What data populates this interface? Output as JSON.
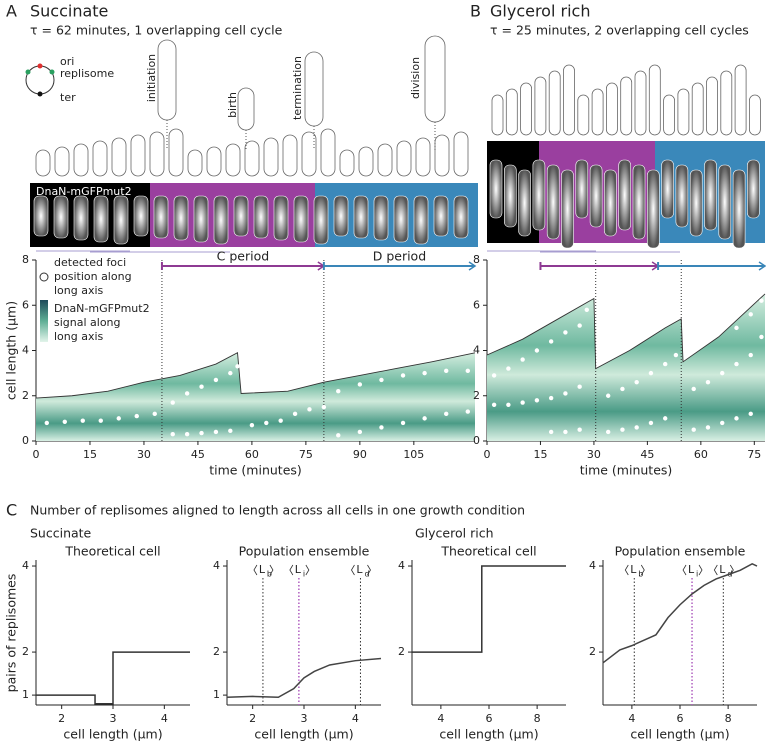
{
  "panel_a": {
    "label": "A",
    "title": "Succinate",
    "subtitle": "τ = 62 minutes, 1 overlapping cell cycle",
    "legend": [
      "ori",
      "replisome",
      "ter"
    ],
    "stages": [
      "initiation",
      "birth",
      "termination",
      "division"
    ],
    "image_label": "DnaN-mGFPmut2",
    "kymo_legend": {
      "foci": [
        "detected foci",
        "position along",
        "long axis"
      ],
      "signal": [
        "DnaN-mGFPmut2",
        "signal along",
        "long axis"
      ]
    }
  },
  "panel_b": {
    "label": "B",
    "title": "Glycerol rich",
    "subtitle": "τ = 25 minutes, 2 overlapping cell cycles"
  },
  "panel_c": {
    "label": "C",
    "title": "Number of replisomes aligned to length across all cells in one growth condition",
    "conditions": [
      "Succinate",
      "Glycerol rich"
    ],
    "y_label": "pairs of replisomes"
  },
  "chart_data": [
    {
      "type": "kymograph",
      "y_label": "cell length (µm)",
      "x_label": "time (minutes)",
      "xlim": [
        0,
        122
      ],
      "xticks": [
        0,
        15,
        30,
        45,
        60,
        75,
        90,
        105
      ],
      "ylim": [
        0,
        8
      ],
      "yticks": [
        0,
        2,
        4,
        6,
        8
      ],
      "outline_x": [
        0,
        10,
        20,
        30,
        40,
        50,
        56,
        57,
        70,
        80,
        90,
        100,
        110,
        122
      ],
      "outline_values": [
        1.9,
        2.0,
        2.2,
        2.6,
        2.9,
        3.4,
        3.9,
        2.1,
        2.2,
        2.6,
        2.9,
        3.2,
        3.5,
        3.9
      ],
      "foci_x": [
        3,
        8,
        13,
        18,
        23,
        28,
        33,
        38,
        42,
        46,
        50,
        54,
        38,
        42,
        46,
        50,
        54,
        56,
        60,
        64,
        68,
        72,
        76,
        80,
        84,
        90,
        96,
        102,
        108,
        114,
        120,
        84,
        90,
        96,
        102,
        108,
        114,
        120
      ],
      "foci_y": [
        0.8,
        0.85,
        0.9,
        0.9,
        1.0,
        1.1,
        1.2,
        0.3,
        0.3,
        0.35,
        0.4,
        0.45,
        1.7,
        2.1,
        2.4,
        2.7,
        3.0,
        3.3,
        0.7,
        0.8,
        0.9,
        1.2,
        1.4,
        1.5,
        0.25,
        0.4,
        0.6,
        0.8,
        1.0,
        1.2,
        1.3,
        2.2,
        2.5,
        2.7,
        2.9,
        3.0,
        3.1,
        3.1
      ],
      "markers": [
        35,
        80
      ],
      "periods": [
        {
          "label": "C period",
          "start": 35,
          "end": 80,
          "color": "#8e3a93"
        },
        {
          "label": "D period",
          "start": 80,
          "end": 122,
          "color": "#3a86b8"
        }
      ]
    },
    {
      "type": "kymograph",
      "x_label": "time (minutes)",
      "xlim": [
        0,
        78
      ],
      "xticks": [
        0,
        15,
        30,
        45,
        60,
        75
      ],
      "ylim": [
        0,
        8
      ],
      "yticks": [
        0,
        2,
        4,
        6,
        8
      ],
      "outline_x": [
        0,
        10,
        20,
        30,
        30.5,
        40,
        50,
        54.5,
        55,
        65,
        78
      ],
      "outline_values": [
        3.8,
        4.5,
        5.4,
        6.3,
        3.2,
        4.0,
        5.0,
        5.4,
        3.5,
        4.6,
        6.5
      ],
      "foci_x": [
        2,
        6,
        10,
        14,
        18,
        22,
        26,
        2,
        6,
        10,
        14,
        18,
        22,
        26,
        18,
        22,
        26,
        28,
        34,
        38,
        42,
        46,
        50,
        34,
        38,
        42,
        46,
        50,
        53,
        58,
        62,
        66,
        70,
        74,
        58,
        62,
        66,
        70,
        74,
        77,
        70,
        74,
        77
      ],
      "foci_y": [
        1.6,
        1.6,
        1.7,
        1.8,
        1.9,
        2.1,
        2.4,
        2.9,
        3.2,
        3.6,
        4.0,
        4.4,
        4.8,
        5.1,
        0.4,
        0.4,
        0.5,
        5.8,
        0.4,
        0.5,
        0.6,
        0.8,
        1.0,
        2.0,
        2.3,
        2.6,
        3.0,
        3.4,
        3.8,
        0.5,
        0.6,
        0.8,
        1.0,
        1.2,
        2.3,
        2.6,
        3.0,
        3.4,
        3.8,
        4.6,
        5.0,
        5.6,
        6.2
      ],
      "markers": [
        30.5,
        54.5
      ],
      "periods": [
        {
          "start": 15,
          "end": 48,
          "color": "#8e3a93"
        },
        {
          "start": 48,
          "end": 78,
          "color": "#3a86b8"
        }
      ]
    },
    {
      "type": "step",
      "title": "Theoretical cell",
      "x_label": "cell length (µm)",
      "xlim": [
        1.5,
        4.5
      ],
      "xticks": [
        2,
        3,
        4
      ],
      "ylim": [
        0.77,
        4.14
      ],
      "yticks": [
        1,
        2,
        4
      ],
      "x": [
        1.5,
        2.65,
        2.65,
        3.0,
        3.0,
        4.5
      ],
      "values": [
        1,
        1,
        0.8,
        0.8,
        2,
        2
      ]
    },
    {
      "type": "line",
      "title": "Population ensemble",
      "x_label": "cell length (µm)",
      "xlim": [
        1.5,
        4.5
      ],
      "xticks": [
        2,
        3,
        4
      ],
      "ylim": [
        0.77,
        4.14
      ],
      "yticks": [
        1,
        2,
        4
      ],
      "x": [
        1.5,
        2.0,
        2.5,
        2.8,
        3.0,
        3.2,
        3.5,
        4.0,
        4.5
      ],
      "values": [
        0.95,
        0.97,
        0.95,
        1.15,
        1.4,
        1.55,
        1.7,
        1.8,
        1.85
      ],
      "annotations": [
        {
          "x": 2.2,
          "label": "L",
          "sub": "b"
        },
        {
          "x": 2.9,
          "label": "L",
          "sub": "i",
          "color": "#b05fc0"
        },
        {
          "x": 4.1,
          "label": "L",
          "sub": "d"
        }
      ]
    },
    {
      "type": "step",
      "title": "Theoretical cell",
      "x_label": "cell length (µm)",
      "xlim": [
        2.8,
        9.2
      ],
      "xticks": [
        4,
        6,
        8
      ],
      "ylim": [
        0.77,
        4.14
      ],
      "yticks": [
        2,
        4
      ],
      "x": [
        2.8,
        5.7,
        5.7,
        9.2
      ],
      "values": [
        2,
        2,
        4,
        4
      ]
    },
    {
      "type": "line",
      "title": "Population ensemble",
      "x_label": "cell length (µm)",
      "xlim": [
        2.8,
        9.2
      ],
      "xticks": [
        4,
        6,
        8
      ],
      "ylim": [
        0.77,
        4.14
      ],
      "yticks": [
        2,
        4
      ],
      "x": [
        2.8,
        3.5,
        4.0,
        5.0,
        5.5,
        6.0,
        6.5,
        7.0,
        7.5,
        8.0,
        8.5,
        9.0,
        9.2
      ],
      "values": [
        1.75,
        2.05,
        2.15,
        2.4,
        2.8,
        3.1,
        3.35,
        3.55,
        3.7,
        3.8,
        3.9,
        4.05,
        4.0
      ],
      "annotations": [
        {
          "x": 4.1,
          "label": "L",
          "sub": "b"
        },
        {
          "x": 6.5,
          "label": "L",
          "sub": "i",
          "color": "#b05fc0"
        },
        {
          "x": 7.8,
          "label": "L",
          "sub": "d"
        }
      ]
    }
  ]
}
